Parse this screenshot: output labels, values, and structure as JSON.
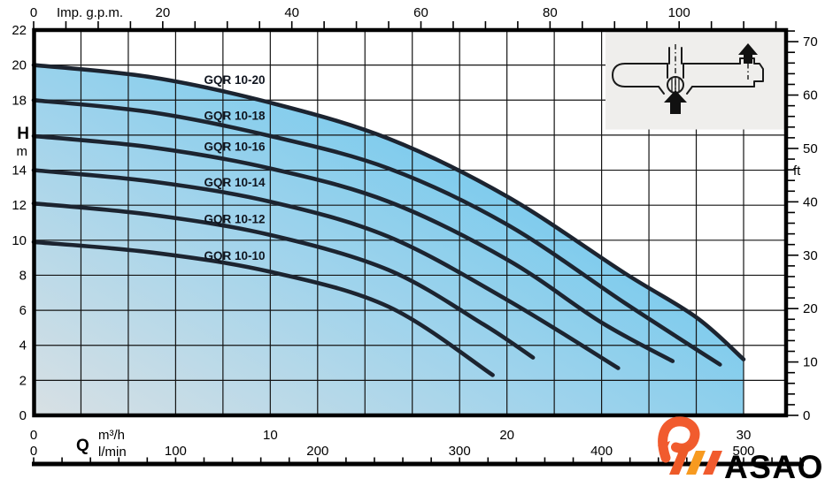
{
  "page": {
    "background": "#ffffff"
  },
  "chart_data": {
    "type": "line",
    "title": "GQR 10 pump performance curves (head H vs flow Q)",
    "grid": {
      "x_step_m3h": 2,
      "y_step_m": 2,
      "grid_on": true
    },
    "axes": {
      "top_gpm": {
        "label": "Imp. g.p.m.",
        "major_ticks": [
          0,
          20,
          40,
          60,
          80,
          100
        ],
        "minor_step": 5,
        "max": 115,
        "gpm_to_m3h": 0.27276
      },
      "left_h_m": {
        "label_symbol": "H",
        "label_unit": "m",
        "min": 0,
        "max": 22,
        "labeled_ticks": [
          22,
          20,
          18,
          14,
          12,
          10,
          8,
          6,
          4,
          2,
          0
        ],
        "unit_at_value": 16
      },
      "right_ft": {
        "label": "ft",
        "major_ticks": [
          70,
          60,
          50,
          40,
          30,
          20,
          10,
          0
        ],
        "minor_step": 2,
        "max": 72,
        "ft_to_m": 0.3048
      },
      "bottom_m3h": {
        "label": "m³/h",
        "ticks": [
          0,
          10,
          20,
          30
        ],
        "max": 30
      },
      "bottom_lmin": {
        "flow_symbol": "Q",
        "label": "l/min",
        "major_ticks": [
          0,
          100,
          200,
          300,
          400,
          500
        ],
        "minor_step": 20,
        "max": 540,
        "lmin_to_m3h": 0.06
      }
    },
    "series": [
      {
        "name": "GQR 10-20",
        "label_h": 19.15,
        "points": [
          [
            0,
            20.0
          ],
          [
            5,
            19.3
          ],
          [
            10,
            17.85
          ],
          [
            15,
            15.8
          ],
          [
            20,
            12.5
          ],
          [
            25,
            8.1
          ],
          [
            28,
            5.6
          ],
          [
            30,
            3.2
          ]
        ]
      },
      {
        "name": "GQR 10-18",
        "label_h": 17.1,
        "points": [
          [
            0,
            18.0
          ],
          [
            5,
            17.3
          ],
          [
            10,
            15.95
          ],
          [
            15,
            14.1
          ],
          [
            20,
            10.9
          ],
          [
            25,
            6.4
          ],
          [
            29,
            2.9
          ]
        ]
      },
      {
        "name": "GQR 10-16",
        "label_h": 15.35,
        "points": [
          [
            0,
            15.95
          ],
          [
            5,
            15.3
          ],
          [
            10,
            14.1
          ],
          [
            15,
            12.2
          ],
          [
            20,
            8.9
          ],
          [
            24,
            5.3
          ],
          [
            27,
            3.1
          ]
        ]
      },
      {
        "name": "GQR 10-14",
        "label_h": 13.3,
        "points": [
          [
            0,
            14.0
          ],
          [
            5,
            13.35
          ],
          [
            10,
            12.2
          ],
          [
            15,
            10.2
          ],
          [
            20,
            6.6
          ],
          [
            24.7,
            2.7
          ]
        ]
      },
      {
        "name": "GQR 10-12",
        "label_h": 11.2,
        "points": [
          [
            0,
            12.1
          ],
          [
            5,
            11.45
          ],
          [
            10,
            10.3
          ],
          [
            15,
            8.3
          ],
          [
            19,
            5.2
          ],
          [
            21.1,
            3.3
          ]
        ]
      },
      {
        "name": "GQR 10-10",
        "label_h": 9.1,
        "points": [
          [
            0,
            9.9
          ],
          [
            5,
            9.3
          ],
          [
            10,
            8.2
          ],
          [
            15,
            6.2
          ],
          [
            19.4,
            2.3
          ]
        ]
      }
    ],
    "styles": {
      "curve_color": "#1c2430",
      "grid_color": "#141414",
      "frame_color": "#000000",
      "fill_stops": [
        "#d8e0e4",
        "#9ed3ec",
        "#5ac3ee"
      ],
      "inset_bg": "#efeeec"
    }
  },
  "inset": {
    "name": "pump cross-section with flow direction arrows"
  },
  "logo": {
    "text": "ASAO",
    "orange": "#f15b2e",
    "dark_orange": "#ed5a28",
    "amber": "#f79a1f",
    "navy": "#1e2c50"
  }
}
